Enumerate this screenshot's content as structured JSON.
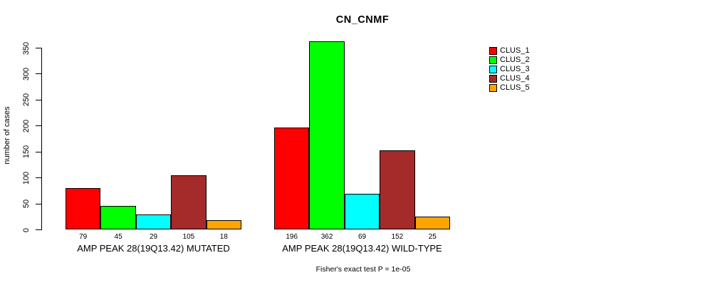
{
  "title": "CN_CNMF",
  "chart_data": {
    "type": "bar",
    "title": "CN_CNMF",
    "ylabel": "number of cases",
    "xlabel": "",
    "ylim": [
      0,
      350
    ],
    "yticks": [
      0,
      50,
      100,
      150,
      200,
      250,
      300,
      350
    ],
    "grid": false,
    "legend_position": "top-right",
    "categories": [
      "AMP PEAK 28(19Q13.42) MUTATED",
      "AMP PEAK 28(19Q13.42) WILD-TYPE"
    ],
    "series": [
      {
        "name": "CLUS_1",
        "color": "#FF0000",
        "values": [
          79,
          196
        ]
      },
      {
        "name": "CLUS_2",
        "color": "#00FF00",
        "values": [
          45,
          362
        ]
      },
      {
        "name": "CLUS_3",
        "color": "#00FFFF",
        "values": [
          29,
          69
        ]
      },
      {
        "name": "CLUS_4",
        "color": "#A52A2A",
        "values": [
          105,
          152
        ]
      },
      {
        "name": "CLUS_5",
        "color": "#FFA500",
        "values": [
          18,
          25
        ]
      }
    ],
    "bar_value_labels": true,
    "annotation": "Fisher's exact test P = 1e-05"
  }
}
